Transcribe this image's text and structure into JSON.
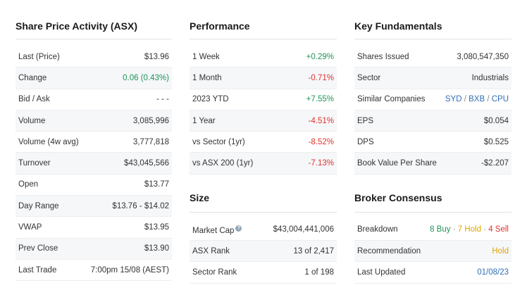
{
  "share_price": {
    "title": "Share Price Activity (ASX)",
    "rows": [
      {
        "label": "Last (Price)",
        "value": "$13.96"
      },
      {
        "label": "Change",
        "value": "0.06 (0.43%)"
      },
      {
        "label": "Bid / Ask",
        "value": "- - -"
      },
      {
        "label": "Volume",
        "value": "3,085,996"
      },
      {
        "label": "Volume (4w avg)",
        "value": "3,777,818"
      },
      {
        "label": "Turnover",
        "value": "$43,045,566"
      },
      {
        "label": "Open",
        "value": "$13.77"
      },
      {
        "label": "Day Range",
        "value": "$13.76 - $14.02"
      },
      {
        "label": "VWAP",
        "value": "$13.95"
      },
      {
        "label": "Prev Close",
        "value": "$13.90"
      },
      {
        "label": "Last Trade",
        "value": "7:00pm 15/08 (AEST)"
      }
    ]
  },
  "performance": {
    "title": "Performance",
    "rows": [
      {
        "label": "1 Week",
        "value": "+0.29%"
      },
      {
        "label": "1 Month",
        "value": "-0.71%"
      },
      {
        "label": "2023 YTD",
        "value": "+7.55%"
      },
      {
        "label": "1 Year",
        "value": "-4.51%"
      },
      {
        "label": "vs Sector (1yr)",
        "value": "-8.52%"
      },
      {
        "label": "vs ASX 200 (1yr)",
        "value": "-7.13%"
      }
    ]
  },
  "size": {
    "title": "Size",
    "help_glyph": "?",
    "rows": [
      {
        "label": "Market Cap",
        "value": "$43,004,441,006"
      },
      {
        "label": "ASX Rank",
        "value": "13 of 2,417"
      },
      {
        "label": "Sector Rank",
        "value": "1 of 198"
      }
    ]
  },
  "fundamentals": {
    "title": "Key Fundamentals",
    "rows": [
      {
        "label": "Shares Issued",
        "value": "3,080,547,350"
      },
      {
        "label": "Sector",
        "value": "Industrials"
      },
      {
        "label": "Similar Companies",
        "value": ""
      },
      {
        "label": "EPS",
        "value": "$0.054"
      },
      {
        "label": "DPS",
        "value": "$0.525"
      },
      {
        "label": "Book Value Per Share",
        "value": "-$2.207"
      }
    ],
    "similar": [
      "SYD",
      "BXB",
      "CPU"
    ],
    "similar_sep": " / "
  },
  "broker": {
    "title": "Broker Consensus",
    "rows": [
      {
        "label": "Breakdown",
        "value": ""
      },
      {
        "label": "Recommendation",
        "value": "Hold"
      },
      {
        "label": "Last Updated",
        "value": "01/08/23"
      }
    ],
    "breakdown": {
      "buy": "8 Buy",
      "hold": "7 Hold",
      "sell": "4 Sell",
      "sep": " · "
    }
  },
  "colors": {
    "positive": "#1f9356",
    "negative": "#e0322c",
    "link": "#2f6fb6",
    "hold": "#e3a500"
  }
}
